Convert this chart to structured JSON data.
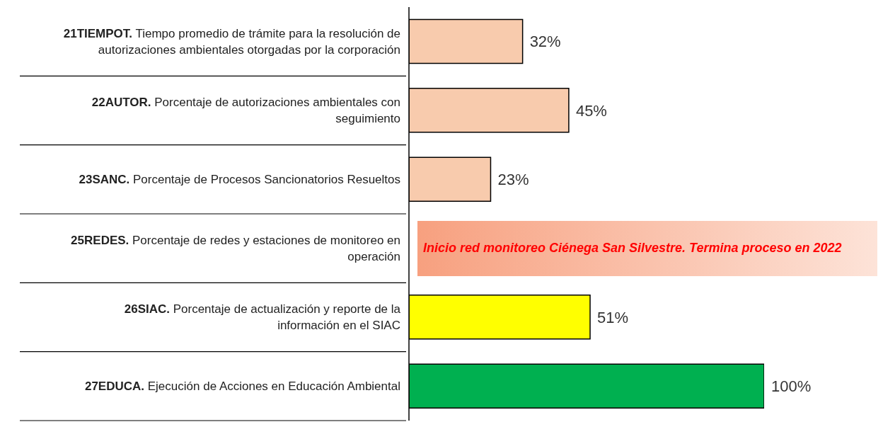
{
  "chart_data": {
    "type": "bar",
    "orientation": "horizontal",
    "categories": [
      "21TIEMPOT. Tiempo promedio de trámite para la resolución de autorizaciones ambientales otorgadas por la corporación",
      "22AUTOR. Porcentaje de autorizaciones ambientales con seguimiento",
      "23SANC. Porcentaje de Procesos Sancionatorios Resueltos",
      "25REDES. Porcentaje de redes y estaciones de monitoreo en operación",
      "26SIAC. Porcentaje de actualización y reporte de la información en el SIAC",
      "27EDUCA. Ejecución de Acciones en Educación Ambiental"
    ],
    "values": [
      32,
      45,
      23,
      null,
      51,
      100
    ],
    "value_labels": [
      "32%",
      "45%",
      "23%",
      null,
      "51%",
      "100%"
    ],
    "colors": [
      "#f8cbad",
      "#f8cbad",
      "#f8cbad",
      null,
      "#ffff00",
      "#00b050"
    ],
    "xlim": [
      0,
      100
    ],
    "tick_labels": "y",
    "annotations": [
      "Inicio red monitoreo Ciénega San Silvestre. Termina proceso en 2022"
    ]
  }
}
